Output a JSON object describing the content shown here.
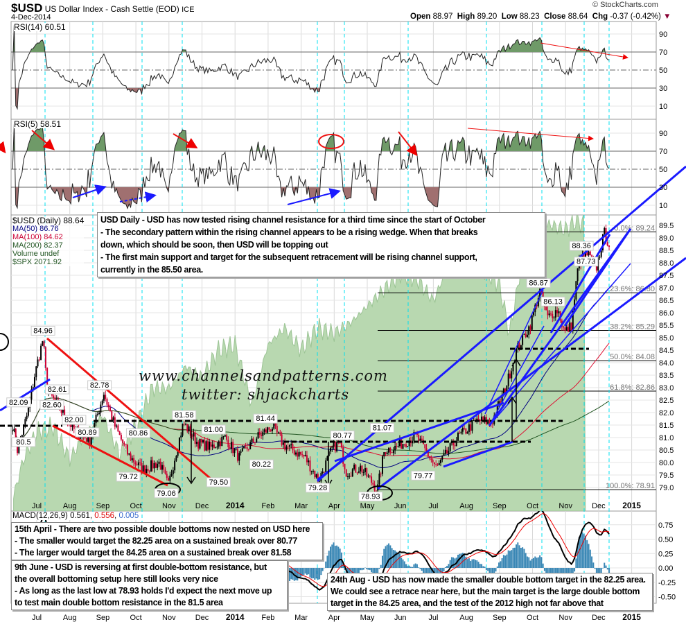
{
  "header": {
    "symbol": "$USD",
    "name": "US Dollar Index - Cash Settle (EOD)",
    "exchange": "ICE",
    "date": "4-Dec-2014",
    "copyright": "© StockCharts.com",
    "open_label": "Open",
    "open": "88.97",
    "high_label": "High",
    "high": "89.20",
    "low_label": "Low",
    "low": "88.23",
    "close_label": "Close",
    "close": "88.64",
    "chg_label": "Chg",
    "chg": "-0.37 (-0.42%)"
  },
  "colors": {
    "spx_fill": "#b8d8b0",
    "up": "#000000",
    "down": "#cc0033",
    "ma50": "#000080",
    "ma100": "#dd1133",
    "ma200": "#225522",
    "trend": "#1a1aff",
    "cyan": "#00e0f0"
  },
  "panels": {
    "rsi14_label": "RSI(14) 60.51",
    "rsi5_label": "RSI(5) 58.51",
    "macd_label": "MACD(12,26,9)",
    "macd_v1": "0.561",
    "macd_v2": "0.556",
    "macd_v3": "0.005",
    "legend": [
      "$USD (Daily) 88.64",
      "MA(50) 86.76",
      "MA(100) 84.62",
      "MA(200) 82.37",
      "Volume undef",
      "$SPX 2071.92"
    ]
  },
  "watermark": {
    "site": "www.channelsandpatterns.com",
    "twitter": "twitter: shjackcharts"
  },
  "notes": {
    "main": [
      "USD Daily - USD has now tested rising channel resistance for a third time since the start of October",
      "- The secondary pattern within the rising channel appears to be a rising wedge. When that breaks",
      "down, which should be soon, then USD will be topping out",
      "- The first main support and target for the subsequent retracement will be rising channel support,",
      "currently in the 85.50 area."
    ],
    "april": [
      "15th April - There are two possible double bottoms now nested on USD here",
      "- The smaller would target the 82.25 area on a sustained break over 80.77",
      "- The larger would target the 84.25 area on a sustained break over 81.58"
    ],
    "june": [
      "9th June - USD is reversing at first double-bottom resistance, but",
      "the overall bottoming setup here still looks very nice",
      "- As long as the last low at 78.93 holds I'd expect the next move up",
      "to test main double bottom resistance in the 81.5 area"
    ],
    "august": [
      "24th Aug - USD has now made the smaller double bottom target in the 82.25 area.",
      "We could see a retrace near here, but the main target is the large double bottom",
      "target in the 84.25 area, and the test of the 2012 high not far above that"
    ]
  },
  "chart_data": {
    "type": "line",
    "title": "$USD US Dollar Index - Cash Settle (EOD) Daily",
    "x_unit": "months since Jun 2013 (Jul 2013 = 1)",
    "x_ticks": [
      {
        "m": 1,
        "l": "Jul"
      },
      {
        "m": 2,
        "l": "Aug"
      },
      {
        "m": 3,
        "l": "Sep"
      },
      {
        "m": 4,
        "l": "Oct"
      },
      {
        "m": 5,
        "l": "Nov"
      },
      {
        "m": 6,
        "l": "Dec"
      },
      {
        "m": 7,
        "l": "2014",
        "b": 1
      },
      {
        "m": 8,
        "l": "Feb"
      },
      {
        "m": 9,
        "l": "Mar"
      },
      {
        "m": 10,
        "l": "Apr"
      },
      {
        "m": 11,
        "l": "May"
      },
      {
        "m": 12,
        "l": "Jun"
      },
      {
        "m": 13,
        "l": "Jul"
      },
      {
        "m": 14,
        "l": "Aug"
      },
      {
        "m": 15,
        "l": "Sep"
      },
      {
        "m": 16,
        "l": "Oct"
      },
      {
        "m": 17,
        "l": "Nov"
      },
      {
        "m": 18,
        "l": "Dec"
      },
      {
        "m": 19,
        "l": "2015",
        "b": 1
      }
    ],
    "price_ticks": [
      "79.0",
      "79.5",
      "80.0",
      "80.5",
      "81.0",
      "81.5",
      "82.0",
      "82.5",
      "83.0",
      "83.5",
      "84.0",
      "84.5",
      "85.0",
      "85.5",
      "86.0",
      "86.5",
      "87.0",
      "87.5",
      "88.0",
      "88.5",
      "89.0",
      "89.5"
    ],
    "rsi_ticks": [
      "90",
      "70",
      "50",
      "30",
      "10"
    ],
    "macd_ticks": [
      "0.75",
      "0.50",
      "0.25",
      "0.00",
      "-0.25",
      "-0.50"
    ],
    "price_keypoints": [
      [
        0.27,
        81.5
      ],
      [
        0.41,
        80.5
      ],
      [
        0.73,
        82
      ],
      [
        0.94,
        83.5
      ],
      [
        1.19,
        84.96
      ],
      [
        1.31,
        83
      ],
      [
        1.46,
        82.6
      ],
      [
        1.78,
        82
      ],
      [
        2.19,
        81.2
      ],
      [
        2.61,
        80.9
      ],
      [
        3.03,
        82.78
      ],
      [
        3.35,
        81.5
      ],
      [
        3.77,
        80.3
      ],
      [
        4.19,
        79.72
      ],
      [
        4.71,
        80
      ],
      [
        4.98,
        79.06
      ],
      [
        5.23,
        80.5
      ],
      [
        5.44,
        81.58
      ],
      [
        5.86,
        80.8
      ],
      [
        6.28,
        80.6
      ],
      [
        6.7,
        81
      ],
      [
        7.12,
        80.2
      ],
      [
        7.65,
        81
      ],
      [
        8.13,
        81.44
      ],
      [
        8.48,
        80.7
      ],
      [
        9.11,
        80.22
      ],
      [
        9.53,
        79.28
      ],
      [
        9.95,
        80.6
      ],
      [
        10.16,
        80.77
      ],
      [
        10.37,
        79.6
      ],
      [
        10.79,
        79.8
      ],
      [
        11.31,
        78.93
      ],
      [
        11.52,
        80.5
      ],
      [
        11.84,
        80.6
      ],
      [
        12.47,
        81.07
      ],
      [
        13.1,
        79.77
      ],
      [
        13.73,
        81
      ],
      [
        14.35,
        81.7
      ],
      [
        14.77,
        81.6
      ],
      [
        15.19,
        83
      ],
      [
        15.51,
        84.5
      ],
      [
        15.93,
        85.5
      ],
      [
        16.22,
        86.87
      ],
      [
        16.45,
        85.8
      ],
      [
        16.77,
        86.13
      ],
      [
        16.97,
        85.2
      ],
      [
        17.18,
        85.5
      ],
      [
        17.39,
        88
      ],
      [
        17.67,
        88.36
      ],
      [
        17.92,
        87.73
      ],
      [
        18.17,
        89.2
      ],
      [
        18.34,
        88.64
      ]
    ],
    "spx_keypoints": [
      [
        0.3,
        1573
      ],
      [
        0.6,
        1640
      ],
      [
        1.0,
        1690
      ],
      [
        1.5,
        1700
      ],
      [
        2.0,
        1640
      ],
      [
        2.5,
        1690
      ],
      [
        3.0,
        1720
      ],
      [
        3.5,
        1650
      ],
      [
        4.0,
        1700
      ],
      [
        4.5,
        1770
      ],
      [
        5.0,
        1770
      ],
      [
        5.5,
        1810
      ],
      [
        6.0,
        1790
      ],
      [
        6.5,
        1840
      ],
      [
        7.0,
        1850
      ],
      [
        7.5,
        1740
      ],
      [
        8.0,
        1850
      ],
      [
        8.5,
        1880
      ],
      [
        9.0,
        1840
      ],
      [
        9.5,
        1880
      ],
      [
        10.0,
        1870
      ],
      [
        10.5,
        1890
      ],
      [
        11.0,
        1920
      ],
      [
        11.5,
        1950
      ],
      [
        12.0,
        1980
      ],
      [
        12.5,
        1970
      ],
      [
        13.0,
        1930
      ],
      [
        13.5,
        2000
      ],
      [
        14.0,
        2010
      ],
      [
        14.5,
        1990
      ],
      [
        15.0,
        1960
      ],
      [
        15.3,
        1870
      ],
      [
        15.8,
        2040
      ],
      [
        16.2,
        2060
      ],
      [
        16.5,
        2070
      ],
      [
        17.0,
        2060
      ],
      [
        17.3,
        2075
      ],
      [
        17.6,
        2072
      ]
    ],
    "price_labels": [
      [
        1.19,
        84.96,
        "84.96"
      ],
      [
        0.45,
        82.09,
        "82.09"
      ],
      [
        0.6,
        80.5,
        "80.5"
      ],
      [
        1.62,
        82.61,
        "82.61"
      ],
      [
        1.46,
        82.6,
        "82.60"
      ],
      [
        2.13,
        82.0,
        "82.00"
      ],
      [
        2.9,
        82.78,
        "82.78"
      ],
      [
        2.53,
        80.89,
        "80.89"
      ],
      [
        4.07,
        80.86,
        "80.86"
      ],
      [
        3.77,
        79.72,
        "79.72"
      ],
      [
        4.92,
        79.06,
        "79.06"
      ],
      [
        5.46,
        81.58,
        "81.58"
      ],
      [
        6.35,
        81.0,
        "81.00"
      ],
      [
        6.5,
        79.5,
        "79.50"
      ],
      [
        7.92,
        81.44,
        "81.44"
      ],
      [
        7.8,
        80.22,
        "80.22"
      ],
      [
        9.5,
        79.28,
        "79.28"
      ],
      [
        10.25,
        80.77,
        "80.77"
      ],
      [
        11.45,
        81.07,
        "81.07"
      ],
      [
        11.1,
        78.93,
        "78.93"
      ],
      [
        12.69,
        79.77,
        "79.77"
      ],
      [
        16.18,
        86.87,
        "86.87"
      ],
      [
        16.62,
        86.13,
        "86.13"
      ],
      [
        17.48,
        88.36,
        "88.36"
      ],
      [
        17.62,
        87.73,
        "87.73"
      ]
    ],
    "fib": [
      [
        89.24,
        "0.0%: 89.24"
      ],
      [
        86.8,
        "23.6%: 86.80"
      ],
      [
        85.29,
        "38.2%: 85.29"
      ],
      [
        84.08,
        "50.0%: 84.08"
      ],
      [
        82.86,
        "61.8%: 82.86"
      ],
      [
        78.91,
        "100.0%: 78.91"
      ]
    ],
    "last": {
      "price": 88.64,
      "ma50": 86.76,
      "ma100": 84.62,
      "ma200": 82.37,
      "spx": 2071.92,
      "rsi14": 60.51,
      "rsi5": 58.51,
      "macd": 0.561,
      "signal": 0.556,
      "hist": 0.005
    }
  }
}
